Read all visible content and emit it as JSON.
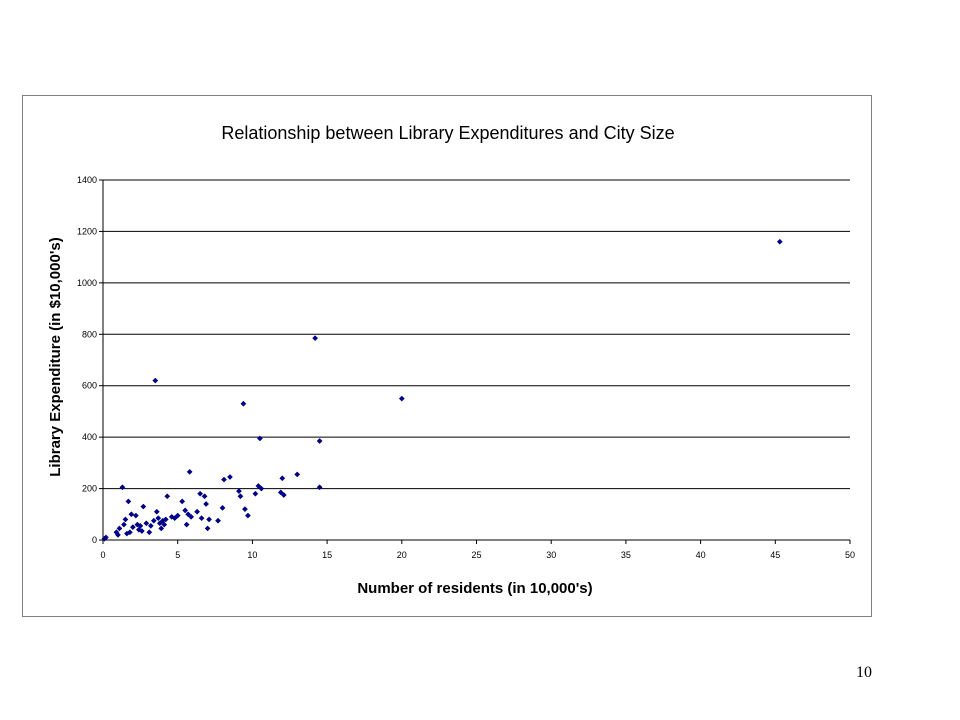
{
  "page_number": "10",
  "chart_data": {
    "type": "scatter",
    "title": "Relationship between Library Expenditures and City Size",
    "xlabel": "Number of residents (in 10,000's)",
    "ylabel": "Library Expenditure (in $10,000's)",
    "xlim": [
      0,
      50
    ],
    "ylim": [
      0,
      1400
    ],
    "x_ticks": [
      0,
      5,
      10,
      15,
      20,
      25,
      30,
      35,
      40,
      45,
      50
    ],
    "y_ticks": [
      0,
      200,
      400,
      600,
      800,
      1000,
      1200,
      1400
    ],
    "grid": "horizontal",
    "legend": "none",
    "marker_color": "#00008B",
    "series": [
      {
        "points": [
          [
            0.1,
            5
          ],
          [
            0.2,
            10
          ],
          [
            0.9,
            30
          ],
          [
            1.0,
            20
          ],
          [
            1.1,
            45
          ],
          [
            1.3,
            205
          ],
          [
            1.4,
            60
          ],
          [
            1.5,
            80
          ],
          [
            1.6,
            25
          ],
          [
            1.7,
            150
          ],
          [
            1.8,
            30
          ],
          [
            1.9,
            100
          ],
          [
            2.0,
            50
          ],
          [
            2.2,
            95
          ],
          [
            2.3,
            60
          ],
          [
            2.4,
            40
          ],
          [
            2.5,
            55
          ],
          [
            2.6,
            35
          ],
          [
            2.7,
            130
          ],
          [
            2.9,
            65
          ],
          [
            3.1,
            30
          ],
          [
            3.2,
            55
          ],
          [
            3.4,
            75
          ],
          [
            3.5,
            620
          ],
          [
            3.6,
            110
          ],
          [
            3.7,
            85
          ],
          [
            3.8,
            65
          ],
          [
            3.9,
            45
          ],
          [
            4.0,
            75
          ],
          [
            4.1,
            60
          ],
          [
            4.2,
            80
          ],
          [
            4.3,
            170
          ],
          [
            4.6,
            90
          ],
          [
            4.8,
            85
          ],
          [
            5.0,
            95
          ],
          [
            5.3,
            150
          ],
          [
            5.5,
            115
          ],
          [
            5.6,
            60
          ],
          [
            5.7,
            100
          ],
          [
            5.8,
            265
          ],
          [
            5.9,
            90
          ],
          [
            6.3,
            110
          ],
          [
            6.5,
            180
          ],
          [
            6.6,
            85
          ],
          [
            6.8,
            170
          ],
          [
            6.9,
            140
          ],
          [
            7.0,
            45
          ],
          [
            7.1,
            80
          ],
          [
            7.7,
            75
          ],
          [
            8.0,
            125
          ],
          [
            8.1,
            235
          ],
          [
            8.5,
            245
          ],
          [
            9.1,
            190
          ],
          [
            9.2,
            170
          ],
          [
            9.4,
            530
          ],
          [
            9.5,
            120
          ],
          [
            9.7,
            95
          ],
          [
            10.2,
            180
          ],
          [
            10.4,
            210
          ],
          [
            10.5,
            395
          ],
          [
            10.6,
            200
          ],
          [
            11.9,
            185
          ],
          [
            12.0,
            240
          ],
          [
            12.1,
            175
          ],
          [
            13.0,
            255
          ],
          [
            14.2,
            785
          ],
          [
            14.5,
            385
          ],
          [
            14.5,
            205
          ],
          [
            20.0,
            550
          ],
          [
            45.3,
            1160
          ]
        ]
      }
    ]
  }
}
